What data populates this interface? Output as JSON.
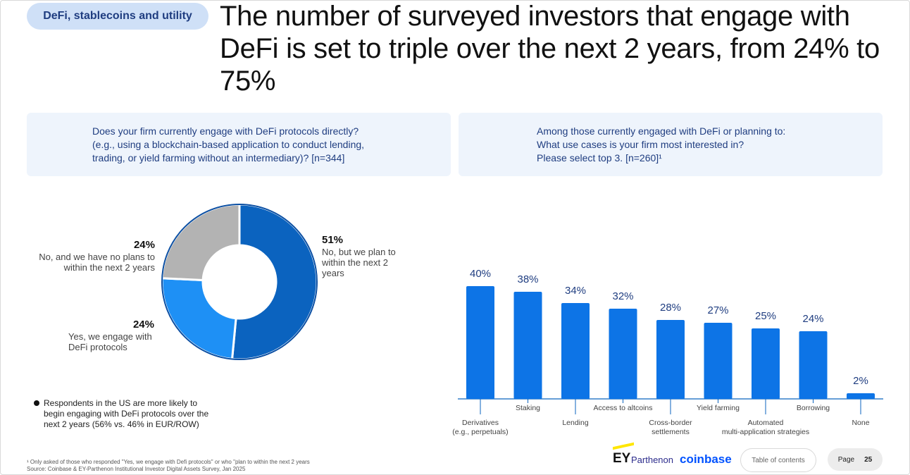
{
  "section_tag": "DeFi, stablecoins and utility",
  "headline": "The number of surveyed investors that engage with DeFi is set to triple over the next 2 years, from 24% to 75%",
  "left_question": "Does your firm currently engage with DeFi protocols directly?\n(e.g., using a blockchain-based application to conduct lending,\ntrading, or yield farming without an intermediary)? [n=344]",
  "right_question": "Among those currently engaged with DeFi or planning to:\nWhat use cases is your firm most interested in?\nPlease select top 3. [n=260]¹",
  "bullet_note": "Respondents in the US are more likely to begin engaging with DeFi protocols over the next 2 years (56% vs. 46% in EUR/ROW)",
  "footnote_1": "¹ Only asked of those who responded \"Yes, we engage with Defi protocols\" or who \"plan to within the next 2 years",
  "footnote_source": "Source: Coinbase & EY-Parthenon Institutional Investor Digital Assets Survey, Jan 2025",
  "footer": {
    "logo_ey": "EY",
    "logo_parthenon": "Parthenon",
    "logo_coinbase": "coinbase",
    "toc_label": "Table of contents",
    "page_label": "Page",
    "page_number": "25"
  },
  "colors": {
    "accent_dark": "#0b63bf",
    "accent_bright": "#1e90f5",
    "gray": "#b3b3b3",
    "bar": "#0d74e6",
    "question_bg": "#eef4fc",
    "pill_bg": "#cfe0f7"
  },
  "chart_data": [
    {
      "type": "pie",
      "hole": true,
      "slices": [
        {
          "label": "No, but we plan to within the next 2 years",
          "value_label": "51%",
          "value": 51,
          "color": "#0b63bf"
        },
        {
          "label": "Yes, we engage with DeFi protocols",
          "value_label": "24%",
          "value": 24,
          "color": "#1e90f5"
        },
        {
          "label": "No, and we have no plans to within the next 2 years",
          "value_label": "24%",
          "value": 24,
          "color": "#b3b3b3"
        }
      ]
    },
    {
      "type": "bar",
      "categories": [
        "Derivatives\n(e.g., perpetuals)",
        "Staking",
        "Lending",
        "Access to altcoins",
        "Cross-border\nsettlements",
        "Yield farming",
        "Automated\nmulti-application strategies",
        "Borrowing",
        "None"
      ],
      "values": [
        40,
        38,
        34,
        32,
        28,
        27,
        25,
        24,
        2
      ],
      "value_labels": [
        "40%",
        "38%",
        "34%",
        "32%",
        "28%",
        "27%",
        "25%",
        "24%",
        "2%"
      ],
      "ylim": [
        0,
        40
      ],
      "grid": false,
      "legend": "none"
    }
  ]
}
